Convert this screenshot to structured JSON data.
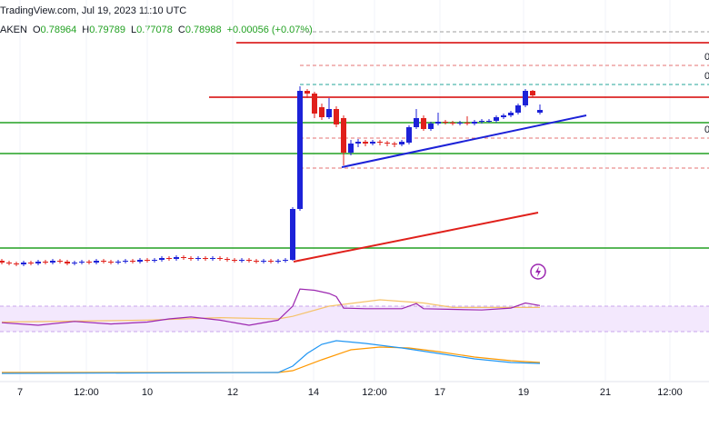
{
  "chart_data": {
    "type": "candlestick",
    "title": "TradingView.com, Jul 19, 2023 11:10 UTC",
    "symbol": "AKEN",
    "legend": [
      {
        "key": "O",
        "value": "0.78964"
      },
      {
        "key": "H",
        "value": "0.79789"
      },
      {
        "key": "L",
        "value": "0.77078"
      },
      {
        "key": "C",
        "value": "0.78988"
      }
    ],
    "change": "+0.00056 (+0.07%)",
    "up_color": "#1c22d8",
    "down_color": "#e0201b",
    "xlim": [
      -0.25,
      97.25
    ],
    "ylim": [
      0.77,
      0.802
    ],
    "xticks": [
      {
        "value": 2.5,
        "label": "7"
      },
      {
        "value": 11.625,
        "label": "12:00"
      },
      {
        "value": 20,
        "label": "10"
      },
      {
        "value": 31.75,
        "label": "12"
      },
      {
        "value": 42.875,
        "label": "14"
      },
      {
        "value": 51.25,
        "label": "12:00"
      },
      {
        "value": 60.25,
        "label": "17"
      },
      {
        "value": 71.75,
        "label": "19"
      },
      {
        "value": 83,
        "label": "21"
      },
      {
        "value": 91.875,
        "label": "12:00"
      }
    ],
    "grid": true,
    "ohlc": [
      [
        0.7733,
        0.7735,
        0.7729,
        0.7731
      ],
      [
        0.7731,
        0.7733,
        0.7728,
        0.773
      ],
      [
        0.773,
        0.7732,
        0.7727,
        0.7729
      ],
      [
        0.7729,
        0.7733,
        0.7727,
        0.7731
      ],
      [
        0.7731,
        0.7733,
        0.7728,
        0.773
      ],
      [
        0.773,
        0.7734,
        0.7728,
        0.7732
      ],
      [
        0.7732,
        0.7734,
        0.7729,
        0.7731
      ],
      [
        0.7731,
        0.7735,
        0.7729,
        0.7733
      ],
      [
        0.7733,
        0.7735,
        0.773,
        0.7732
      ],
      [
        0.7732,
        0.7734,
        0.7728,
        0.773
      ],
      [
        0.773,
        0.7733,
        0.7728,
        0.7731
      ],
      [
        0.7731,
        0.7734,
        0.7729,
        0.7732
      ],
      [
        0.7732,
        0.7734,
        0.7729,
        0.7731
      ],
      [
        0.7731,
        0.7735,
        0.7729,
        0.7733
      ],
      [
        0.7733,
        0.7735,
        0.773,
        0.7732
      ],
      [
        0.7732,
        0.7734,
        0.7729,
        0.7731
      ],
      [
        0.7731,
        0.7734,
        0.7729,
        0.7732
      ],
      [
        0.7732,
        0.7735,
        0.773,
        0.7733
      ],
      [
        0.7733,
        0.7735,
        0.773,
        0.7732
      ],
      [
        0.7732,
        0.7736,
        0.773,
        0.7734
      ],
      [
        0.7734,
        0.7736,
        0.7731,
        0.7733
      ],
      [
        0.7733,
        0.7736,
        0.7731,
        0.7734
      ],
      [
        0.7734,
        0.7738,
        0.7732,
        0.7736
      ],
      [
        0.7736,
        0.7738,
        0.7733,
        0.7735
      ],
      [
        0.7735,
        0.7739,
        0.7733,
        0.7737
      ],
      [
        0.7737,
        0.7739,
        0.7734,
        0.7736
      ],
      [
        0.7736,
        0.7738,
        0.7733,
        0.7735
      ],
      [
        0.7735,
        0.7738,
        0.7733,
        0.7736
      ],
      [
        0.7736,
        0.7738,
        0.7733,
        0.7735
      ],
      [
        0.7735,
        0.7738,
        0.7733,
        0.7736
      ],
      [
        0.7736,
        0.7738,
        0.7733,
        0.7735
      ],
      [
        0.7735,
        0.7737,
        0.7732,
        0.7734
      ],
      [
        0.7734,
        0.7736,
        0.7731,
        0.7733
      ],
      [
        0.7733,
        0.7736,
        0.7731,
        0.7734
      ],
      [
        0.7734,
        0.7736,
        0.7731,
        0.7733
      ],
      [
        0.7733,
        0.7735,
        0.773,
        0.7732
      ],
      [
        0.7732,
        0.7735,
        0.773,
        0.7733
      ],
      [
        0.7733,
        0.7735,
        0.773,
        0.7732
      ],
      [
        0.7732,
        0.7735,
        0.773,
        0.7733
      ],
      [
        0.7733,
        0.7736,
        0.7731,
        0.7734
      ],
      [
        0.7734,
        0.7792,
        0.7733,
        0.779
      ],
      [
        0.779,
        0.7925,
        0.7788,
        0.792
      ],
      [
        0.792,
        0.7922,
        0.7912,
        0.7917
      ],
      [
        0.7917,
        0.7919,
        0.789,
        0.7895
      ],
      [
        0.7902,
        0.7906,
        0.7888,
        0.7891
      ],
      [
        0.7891,
        0.7912,
        0.7889,
        0.79
      ],
      [
        0.79,
        0.7903,
        0.788,
        0.7883
      ],
      [
        0.789,
        0.7893,
        0.7838,
        0.7852
      ],
      [
        0.7852,
        0.7866,
        0.7849,
        0.7862
      ],
      [
        0.7862,
        0.7867,
        0.7858,
        0.7864
      ],
      [
        0.7864,
        0.7866,
        0.7859,
        0.7862
      ],
      [
        0.7862,
        0.7866,
        0.786,
        0.7864
      ],
      [
        0.7864,
        0.7866,
        0.786,
        0.7863
      ],
      [
        0.7863,
        0.7865,
        0.7859,
        0.7862
      ],
      [
        0.7862,
        0.7864,
        0.7858,
        0.7861
      ],
      [
        0.7861,
        0.7866,
        0.7859,
        0.7864
      ],
      [
        0.7863,
        0.7882,
        0.7861,
        0.788
      ],
      [
        0.788,
        0.79,
        0.7878,
        0.789
      ],
      [
        0.789,
        0.7893,
        0.7876,
        0.7878
      ],
      [
        0.7878,
        0.7886,
        0.7876,
        0.7884
      ],
      [
        0.7884,
        0.7896,
        0.7882,
        0.7886
      ],
      [
        0.7886,
        0.7888,
        0.7883,
        0.7885
      ],
      [
        0.7885,
        0.7887,
        0.7882,
        0.7884
      ],
      [
        0.7884,
        0.7887,
        0.7882,
        0.7885
      ],
      [
        0.7885,
        0.7892,
        0.7882,
        0.7884
      ],
      [
        0.7884,
        0.7888,
        0.7882,
        0.7886
      ],
      [
        0.7886,
        0.7889,
        0.7884,
        0.7887
      ],
      [
        0.7887,
        0.7889,
        0.7885,
        0.7887
      ],
      [
        0.7887,
        0.7893,
        0.7885,
        0.7891
      ],
      [
        0.7891,
        0.7895,
        0.7889,
        0.7893
      ],
      [
        0.7893,
        0.7898,
        0.7891,
        0.7896
      ],
      [
        0.7896,
        0.7906,
        0.7894,
        0.7904
      ],
      [
        0.7904,
        0.7922,
        0.7902,
        0.792
      ],
      [
        0.792,
        0.7921,
        0.7913,
        0.7915
      ],
      [
        0.7896,
        0.7905,
        0.7894,
        0.7899
      ]
    ],
    "hlines": [
      {
        "value": 0.7973,
        "from": 32.25,
        "color": "#d50000"
      },
      {
        "value": 0.7913,
        "from": 28.5,
        "color": "#d50000"
      },
      {
        "value": 0.7885,
        "from": -0.25,
        "color": "#22a122"
      },
      {
        "value": 0.7851,
        "from": -0.25,
        "color": "#22a122"
      },
      {
        "value": 0.7747,
        "from": -0.25,
        "color": "#22a122"
      }
    ],
    "levels": [
      {
        "value": 0.7985,
        "color": "#9e9e9e"
      },
      {
        "value": 0.7948,
        "color": "#e57373",
        "label": "0"
      },
      {
        "value": 0.7927,
        "color": "#26a69a",
        "label": "0"
      },
      {
        "value": 0.7868,
        "color": "#e57373",
        "label": "0"
      },
      {
        "value": 0.7835,
        "color": "#e57373"
      }
    ],
    "trendlines": [
      {
        "x": [
          46.75,
          80.375
        ],
        "y": [
          0.7836,
          0.7893
        ],
        "color": "#1c22d8"
      },
      {
        "x": [
          40.125,
          73.75
        ],
        "y": [
          0.7732,
          0.7786
        ],
        "color": "#e0201b"
      }
    ],
    "rsi": {
      "ylim": [
        0,
        100
      ],
      "band": [
        30,
        70
      ],
      "color": "#9c27b0",
      "signal_color": "#f5c36b",
      "x": [
        0,
        5,
        10,
        15,
        20,
        23,
        26,
        30,
        34,
        38,
        40,
        41,
        43,
        45,
        46,
        47,
        50,
        55,
        57,
        58,
        62,
        66,
        70,
        72,
        74
      ],
      "values": [
        44,
        40,
        46,
        42,
        45,
        50,
        53,
        48,
        40,
        48,
        70,
        97,
        95,
        90,
        85,
        67,
        66,
        66,
        74,
        66,
        65,
        64,
        67,
        75,
        71
      ],
      "signal_x": [
        0,
        20,
        30,
        38,
        40,
        45,
        52,
        58,
        62,
        74
      ],
      "signal": [
        45,
        48,
        52,
        50,
        54,
        70,
        80,
        75,
        68,
        68
      ]
    },
    "macd": {
      "ylim": [
        -4,
        40
      ],
      "color": "#2196f3",
      "signal_color": "#ff9800",
      "x": [
        0,
        38,
        40,
        42,
        44,
        46,
        50,
        55,
        60,
        65,
        70,
        74
      ],
      "values": [
        0,
        1,
        8,
        22,
        32,
        36,
        33,
        28,
        22,
        16,
        12,
        11
      ],
      "signal_x": [
        0,
        38,
        40,
        44,
        48,
        52,
        56,
        60,
        65,
        70,
        74
      ],
      "signal": [
        1,
        1,
        3,
        15,
        26,
        29,
        28,
        24,
        18,
        14,
        12
      ]
    }
  }
}
